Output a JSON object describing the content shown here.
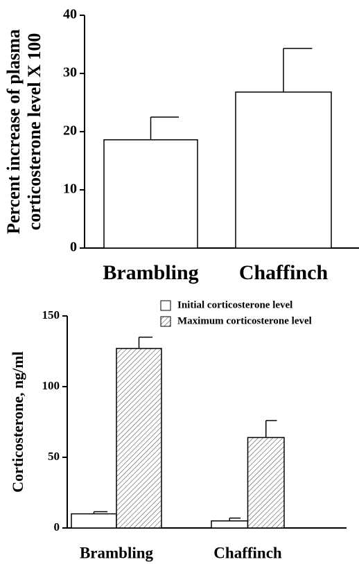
{
  "chart_data": [
    {
      "type": "bar",
      "ylabel": [
        "Percent increase of plasma",
        "corticosterone level X 100"
      ],
      "categories": [
        "Brambling",
        "Chaffinch"
      ],
      "series": [
        {
          "name": null,
          "color": "#ffffff",
          "values": [
            18.6,
            26.8
          ],
          "errors": [
            3.9,
            7.5
          ]
        }
      ],
      "ylim": [
        0,
        40
      ],
      "yticks": [
        0,
        10,
        20,
        30,
        40
      ]
    },
    {
      "type": "bar",
      "ylabel": [
        "Corticosterone, ng/ml"
      ],
      "categories": [
        "Brambling",
        "Chaffinch"
      ],
      "series": [
        {
          "name": "Initial corticosterone level",
          "color": "#ffffff",
          "values": [
            10,
            5
          ],
          "errors": [
            1.5,
            2
          ]
        },
        {
          "name": "Maximum corticosterone level",
          "color": "#ffffff",
          "hatch": true,
          "values": [
            127,
            64
          ],
          "errors": [
            8,
            12
          ]
        }
      ],
      "ylim": [
        0,
        150
      ],
      "yticks": [
        0,
        50,
        100,
        150
      ],
      "legend": "top-right"
    }
  ]
}
